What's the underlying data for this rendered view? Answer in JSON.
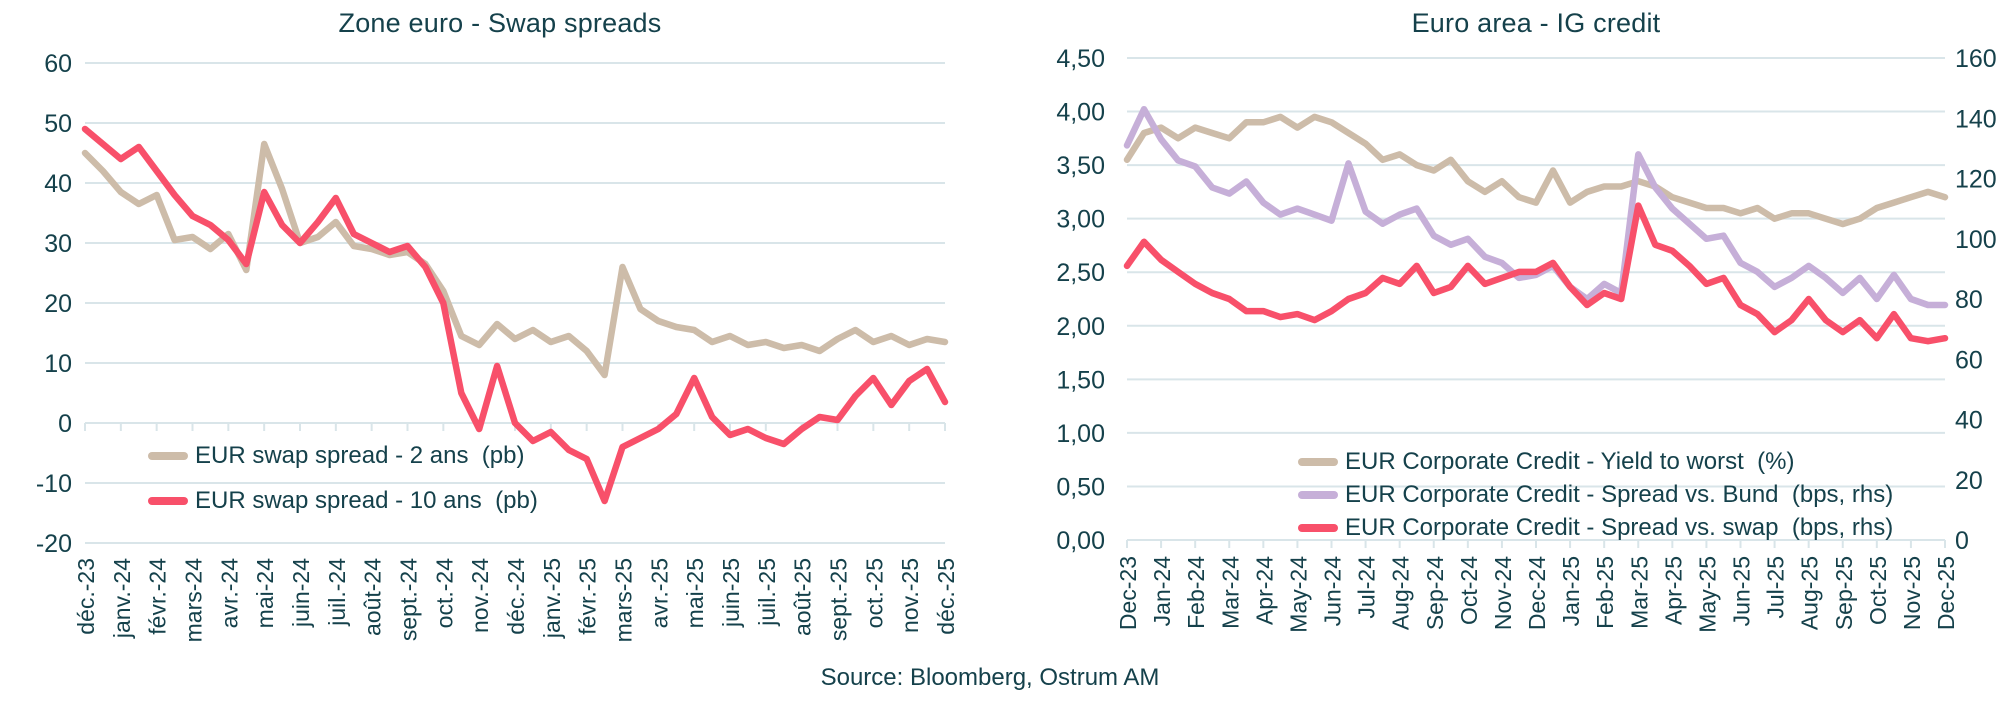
{
  "source": "Source: Bloomberg, Ostrum AM",
  "colors": {
    "text": "#15414B",
    "grid": "#D9E5E9",
    "beige": "#CDBCA9",
    "pink": "#F8506A",
    "purple": "#C6AFD8"
  },
  "chart_data": [
    {
      "type": "line",
      "title": "Zone euro - Swap spreads",
      "points_per_month": 2,
      "x_labels": [
        "déc.-23",
        "janv.-24",
        "févr.-24",
        "mars-24",
        "avr.-24",
        "mai-24",
        "juin-24",
        "juil.-24",
        "août-24",
        "sept.-24",
        "oct.-24",
        "nov.-24",
        "déc.-24",
        "janv.-25",
        "févr.-25",
        "mars-25",
        "avr.-25",
        "mai-25",
        "juin-25",
        "juil.-25",
        "août-25",
        "sept.-25",
        "oct.-25",
        "nov.-25",
        "déc.-25"
      ],
      "y_axis": {
        "min": -20,
        "max": 60,
        "step": 10,
        "tick_labels": [
          "60",
          "50",
          "40",
          "30",
          "20",
          "10",
          "0",
          "-10",
          "-20"
        ],
        "zero_axis_line": true
      },
      "legend_position": "inside left, below zero line",
      "series": [
        {
          "name": "EUR swap spread - 2 ans  (pb)",
          "unit": "pb",
          "axis": "left",
          "color": "beige",
          "values": [
            45,
            42,
            38.5,
            36.5,
            38,
            30.5,
            31,
            29,
            31.5,
            25.5,
            46.5,
            39,
            30,
            31,
            33.5,
            29.5,
            29,
            28,
            28.5,
            26.5,
            22,
            14.5,
            13,
            16.5,
            14,
            15.5,
            13.5,
            14.5,
            12,
            8,
            26,
            19,
            17,
            16,
            15.5,
            13.5,
            14.5,
            13,
            13.5,
            12.5,
            13,
            12,
            14,
            15.5,
            13.5,
            14.5,
            13,
            14,
            13.5
          ]
        },
        {
          "name": "EUR swap spread - 10 ans  (pb)",
          "unit": "pb",
          "axis": "left",
          "color": "pink",
          "values": [
            49,
            46.5,
            44,
            46,
            42,
            38,
            34.5,
            33,
            30.5,
            26.5,
            38.5,
            33,
            30,
            33.5,
            37.5,
            31.5,
            30,
            28.5,
            29.5,
            26,
            20,
            5,
            -1,
            9.5,
            0,
            -3,
            -1.5,
            -4.5,
            -6,
            -13,
            -4,
            -2.5,
            -1,
            1.5,
            7.5,
            1,
            -2,
            -1,
            -2.5,
            -3.5,
            -1,
            1,
            0.5,
            4.5,
            7.5,
            3,
            7,
            9,
            3.5
          ]
        }
      ]
    },
    {
      "type": "line",
      "title": "Euro area - IG credit",
      "points_per_month": 2,
      "x_labels": [
        "Dec-23",
        "Jan-24",
        "Feb-24",
        "Mar-24",
        "Apr-24",
        "May-24",
        "Jun-24",
        "Jul-24",
        "Aug-24",
        "Sep-24",
        "Oct-24",
        "Nov-24",
        "Dec-24",
        "Jan-25",
        "Feb-25",
        "Mar-25",
        "Apr-25",
        "May-25",
        "Jun-25",
        "Jul-25",
        "Aug-25",
        "Sep-25",
        "Oct-25",
        "Nov-25",
        "Dec-25"
      ],
      "y_axis_left": {
        "min": 0,
        "max": 4.5,
        "step": 0.5,
        "tick_labels": [
          "4,50",
          "4,00",
          "3,50",
          "3,00",
          "2,50",
          "2,00",
          "1,50",
          "1,00",
          "0,50",
          "0,00"
        ]
      },
      "y_axis_right": {
        "min": 0,
        "max": 160,
        "step": 20,
        "tick_labels": [
          "160",
          "140",
          "120",
          "100",
          "80",
          "60",
          "40",
          "20",
          "0"
        ]
      },
      "legend_position": "inside center-right, lower third",
      "series": [
        {
          "name": "EUR Corporate Credit - Yield to worst  (%)",
          "unit": "%",
          "axis": "left",
          "color": "beige",
          "values": [
            3.55,
            3.8,
            3.85,
            3.75,
            3.85,
            3.8,
            3.75,
            3.9,
            3.9,
            3.95,
            3.85,
            3.95,
            3.9,
            3.8,
            3.7,
            3.55,
            3.6,
            3.5,
            3.45,
            3.55,
            3.35,
            3.25,
            3.35,
            3.2,
            3.15,
            3.45,
            3.15,
            3.25,
            3.3,
            3.3,
            3.35,
            3.3,
            3.2,
            3.15,
            3.1,
            3.1,
            3.05,
            3.1,
            3.0,
            3.05,
            3.05,
            3.0,
            2.95,
            3.0,
            3.1,
            3.15,
            3.2,
            3.25,
            3.2
          ]
        },
        {
          "name": "EUR Corporate Credit - Spread vs. Bund  (bps, rhs)",
          "unit": "bps",
          "axis": "right",
          "color": "purple",
          "values": [
            131,
            143,
            133,
            126,
            124,
            117,
            115,
            119,
            112,
            108,
            110,
            108,
            106,
            125,
            109,
            105,
            108,
            110,
            101,
            98,
            100,
            94,
            92,
            87,
            88,
            91,
            84,
            80,
            85,
            82,
            128,
            117,
            110,
            105,
            100,
            101,
            92,
            89,
            84,
            87,
            91,
            87,
            82,
            87,
            80,
            88,
            80,
            78,
            78
          ]
        },
        {
          "name": "EUR Corporate Credit - Spread vs. swap  (bps, rhs)",
          "unit": "bps",
          "axis": "right",
          "color": "pink",
          "values": [
            91,
            99,
            93,
            89,
            85,
            82,
            80,
            76,
            76,
            74,
            75,
            73,
            76,
            80,
            82,
            87,
            85,
            91,
            82,
            84,
            91,
            85,
            87,
            89,
            89,
            92,
            84,
            78,
            82,
            80,
            111,
            98,
            96,
            91,
            85,
            87,
            78,
            75,
            69,
            73,
            80,
            73,
            69,
            73,
            67,
            75,
            67,
            66,
            67
          ]
        }
      ]
    }
  ]
}
